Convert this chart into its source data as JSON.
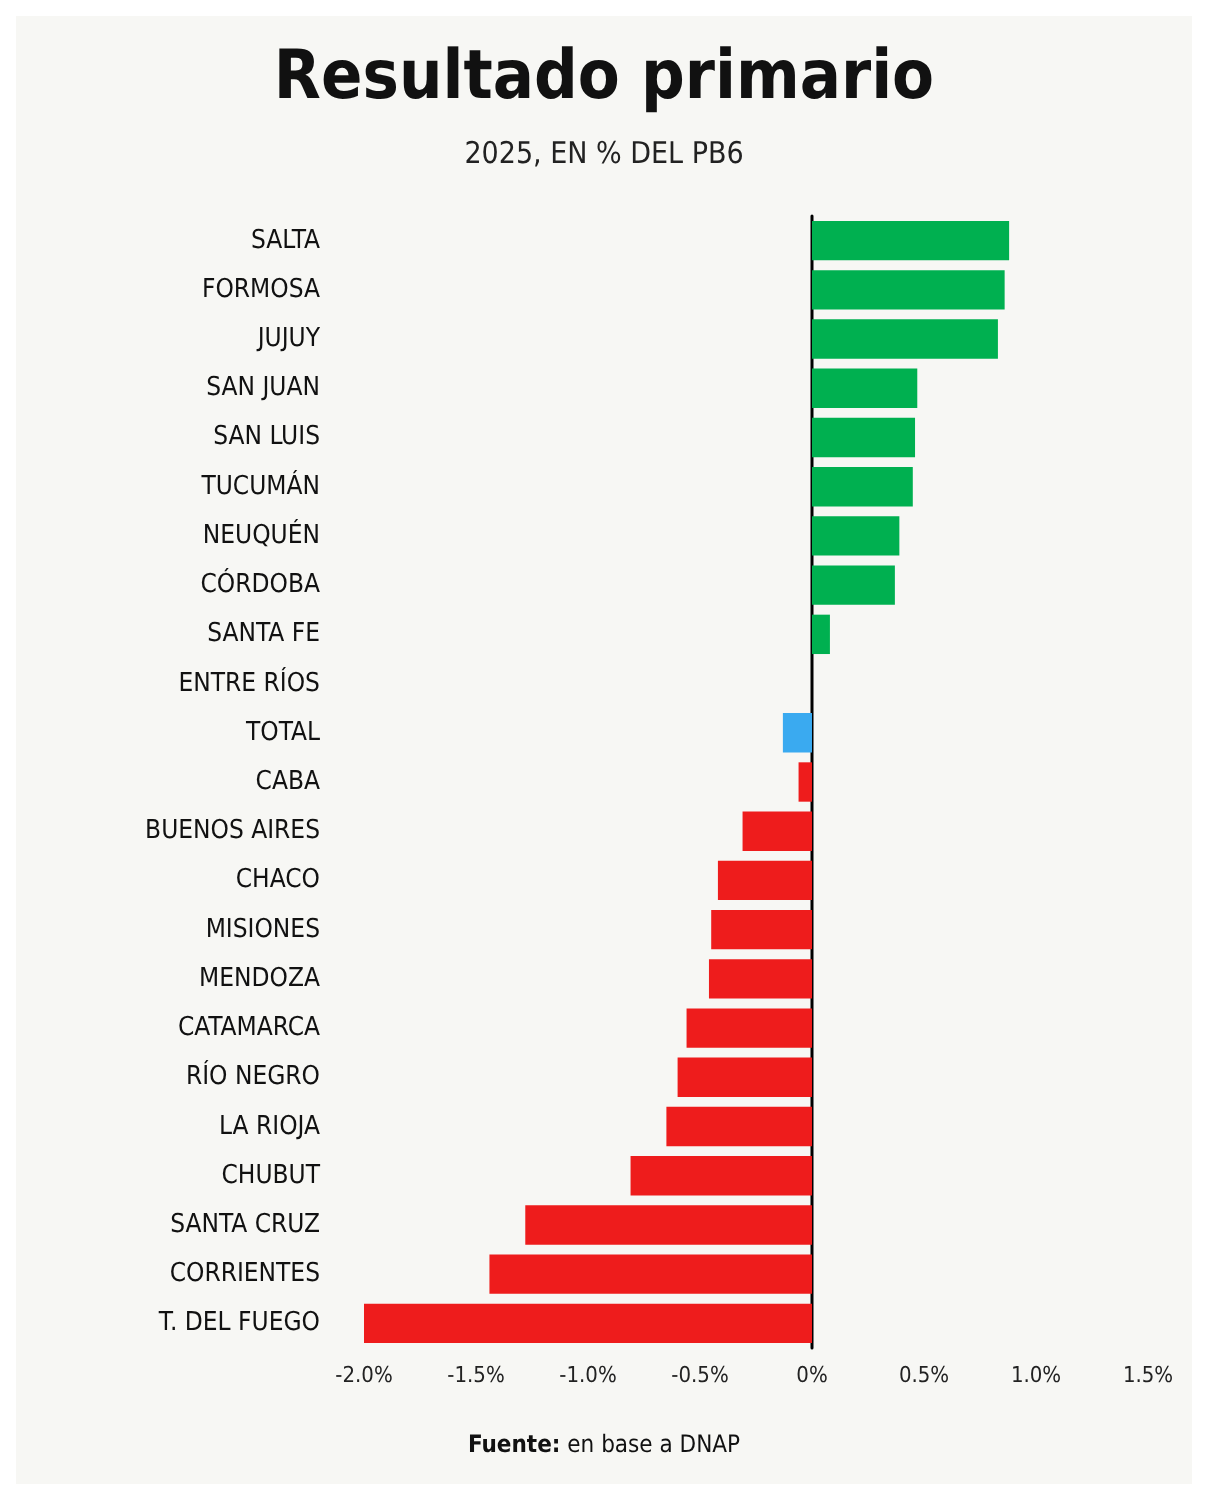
{
  "chart_data": {
    "type": "bar",
    "orientation": "horizontal",
    "title": "Resultado primario",
    "subtitle": "2025, EN % DEL PB6",
    "categories": [
      "SALTA",
      "FORMOSA",
      "JUJUY",
      "SAN JUAN",
      "SAN LUIS",
      "TUCUMÁN",
      "NEUQUÉN",
      "CÓRDOBA",
      "SANTA FE",
      "ENTRE RÍOS",
      "TOTAL",
      "CABA",
      "BUENOS AIRES",
      "CHACO",
      "MISIONES",
      "MENDOZA",
      "CATAMARCA",
      "RÍO NEGRO",
      "LA RIOJA",
      "CHUBUT",
      "SANTA CRUZ",
      "CORRIENTES",
      "T. DEL FUEGO"
    ],
    "values": [
      0.88,
      0.86,
      0.83,
      0.47,
      0.46,
      0.45,
      0.39,
      0.37,
      0.08,
      0,
      -0.13,
      -0.06,
      -0.31,
      -0.42,
      -0.45,
      -0.46,
      -0.56,
      -0.6,
      -0.65,
      -0.81,
      -1.28,
      -1.44,
      -2.0
    ],
    "colors": [
      "#00b050",
      "#00b050",
      "#00b050",
      "#00b050",
      "#00b050",
      "#00b050",
      "#00b050",
      "#00b050",
      "#00b050",
      "#00b050",
      "#3aaaf0",
      "#ee1c1c",
      "#ee1c1c",
      "#ee1c1c",
      "#ee1c1c",
      "#ee1c1c",
      "#ee1c1c",
      "#ee1c1c",
      "#ee1c1c",
      "#ee1c1c",
      "#ee1c1c",
      "#ee1c1c",
      "#ee1c1c"
    ],
    "xlim": [
      -2,
      1.5
    ],
    "xticks": [
      {
        "value": -2,
        "label": "-2.0%"
      },
      {
        "value": -1.5,
        "label": "-1.5%"
      },
      {
        "value": -1,
        "label": "-1.0%"
      },
      {
        "value": -0.5,
        "label": "-0.5%"
      },
      {
        "value": 0,
        "label": "0%"
      },
      {
        "value": 0.5,
        "label": "0.5%"
      },
      {
        "value": 1,
        "label": "1.0%"
      },
      {
        "value": 1.5,
        "label": "1.5%"
      }
    ],
    "annotations": [
      "Fuente: en base a DNAP"
    ]
  }
}
